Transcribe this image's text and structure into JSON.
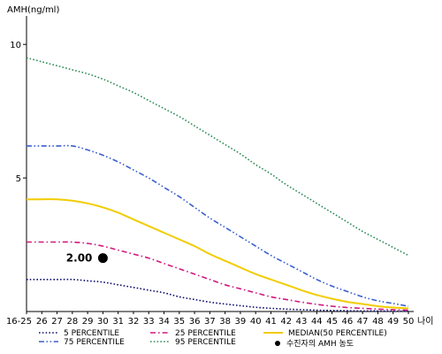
{
  "chart_data": {
    "type": "line",
    "ylabel": "AMH(ng/ml)",
    "xlabel": "나이",
    "x_categories": [
      "16-25",
      "26",
      "27",
      "28",
      "29",
      "30",
      "31",
      "32",
      "33",
      "34",
      "35",
      "36",
      "37",
      "38",
      "39",
      "40",
      "41",
      "42",
      "43",
      "44",
      "45",
      "46",
      "47",
      "48",
      "49",
      "50"
    ],
    "y_ticks": [
      5,
      10
    ],
    "ylim": [
      0,
      11
    ],
    "series": [
      {
        "name": "95 PERCENTILE",
        "color": "#2e8b57",
        "dash": "dotted",
        "values": [
          9.5,
          9.35,
          9.2,
          9.05,
          8.9,
          8.7,
          8.45,
          8.2,
          7.9,
          7.6,
          7.3,
          6.95,
          6.6,
          6.25,
          5.9,
          5.5,
          5.15,
          4.75,
          4.4,
          4.05,
          3.7,
          3.35,
          3.0,
          2.7,
          2.4,
          2.1
        ]
      },
      {
        "name": "75 PERCENTILE",
        "color": "#3a5fcd",
        "dash": "dashdotdot",
        "values": [
          6.2,
          6.2,
          6.2,
          6.2,
          6.05,
          5.85,
          5.6,
          5.3,
          5.0,
          4.65,
          4.3,
          3.9,
          3.5,
          3.15,
          2.8,
          2.45,
          2.1,
          1.8,
          1.5,
          1.2,
          0.95,
          0.75,
          0.55,
          0.4,
          0.3,
          0.2
        ]
      },
      {
        "name": "MEDIAN(50 PERCENTILE)",
        "color": "#f2cc00",
        "dash": "solid",
        "values": [
          4.2,
          4.2,
          4.2,
          4.15,
          4.05,
          3.9,
          3.7,
          3.45,
          3.2,
          2.95,
          2.7,
          2.45,
          2.15,
          1.9,
          1.65,
          1.4,
          1.2,
          1.0,
          0.8,
          0.62,
          0.48,
          0.36,
          0.28,
          0.2,
          0.15,
          0.12
        ]
      },
      {
        "name": "25 PERCENTILE",
        "color": "#d0197f",
        "dash": "dashdot",
        "values": [
          2.6,
          2.6,
          2.6,
          2.6,
          2.55,
          2.45,
          2.3,
          2.15,
          2.0,
          1.8,
          1.6,
          1.4,
          1.2,
          1.0,
          0.85,
          0.7,
          0.55,
          0.45,
          0.35,
          0.27,
          0.2,
          0.15,
          0.12,
          0.09,
          0.07,
          0.05
        ]
      },
      {
        "name": "5 PERCENTILE",
        "color": "#101070",
        "dash": "dotted",
        "values": [
          1.2,
          1.2,
          1.2,
          1.2,
          1.15,
          1.1,
          1.0,
          0.9,
          0.8,
          0.7,
          0.55,
          0.45,
          0.35,
          0.28,
          0.22,
          0.16,
          0.12,
          0.09,
          0.07,
          0.05,
          0.04,
          0.03,
          0.02,
          0.02,
          0.01,
          0.01
        ]
      }
    ],
    "patient_point": {
      "label": "2.00",
      "x": "30",
      "y": 2.0,
      "legend": "수진자의 AMH 농도"
    },
    "legend": {
      "placement": "bottom",
      "order": [
        "5 PERCENTILE",
        "25 PERCENTILE",
        "MEDIAN(50 PERCENTILE)",
        "75 PERCENTILE",
        "95 PERCENTILE"
      ]
    }
  }
}
